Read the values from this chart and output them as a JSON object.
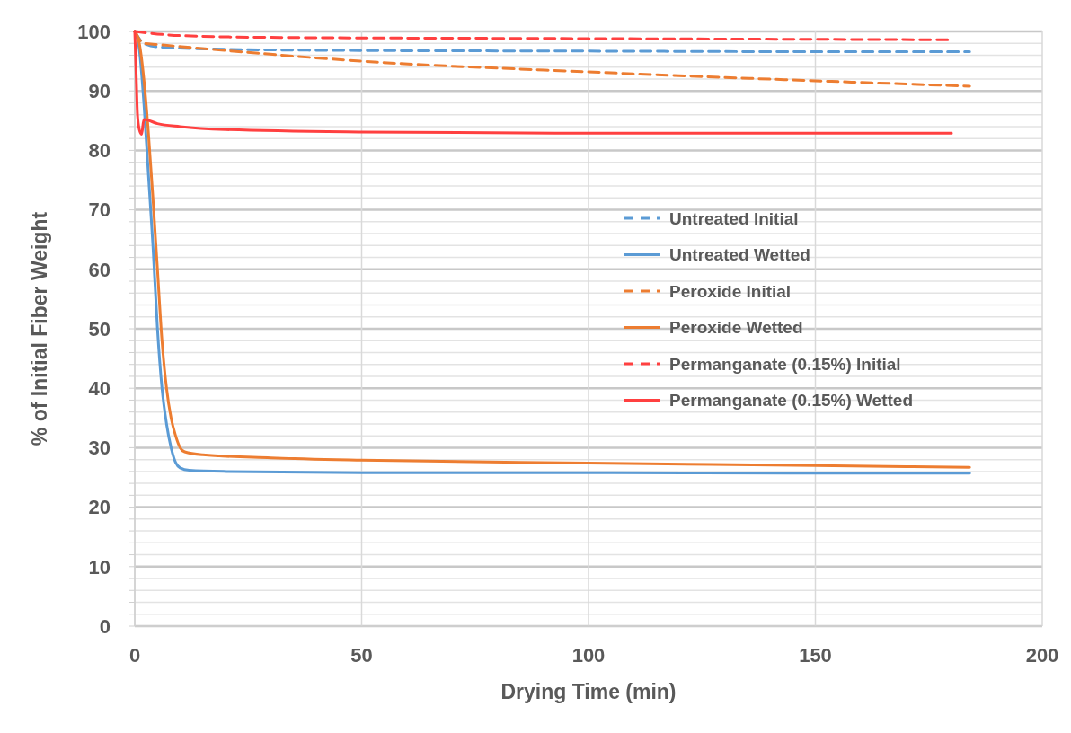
{
  "chart_data": {
    "type": "line",
    "xlabel": "Drying Time (min)",
    "ylabel": "% of Initial Fiber Weight",
    "xlim": [
      0,
      200
    ],
    "xticks": [
      0,
      50,
      100,
      150,
      200
    ],
    "ylim": [
      0,
      100
    ],
    "yticks": [
      0,
      {
        "value": 2,
        "label": null
      },
      {
        "value": 4,
        "label": null
      },
      {
        "value": 6,
        "label": null
      },
      {
        "value": 8,
        "label": null
      },
      10,
      {
        "value": 12,
        "label": null
      },
      {
        "value": 14,
        "label": null
      },
      {
        "value": 16,
        "label": null
      },
      {
        "value": 18,
        "label": null
      },
      20,
      {
        "value": 22,
        "label": null
      },
      {
        "value": 24,
        "label": null
      },
      {
        "value": 26,
        "label": null
      },
      {
        "value": 28,
        "label": null
      },
      30,
      {
        "value": 32,
        "label": null
      },
      {
        "value": 34,
        "label": null
      },
      {
        "value": 36,
        "label": null
      },
      {
        "value": 38,
        "label": null
      },
      40,
      {
        "value": 42,
        "label": null
      },
      {
        "value": 44,
        "label": null
      },
      {
        "value": 46,
        "label": null
      },
      {
        "value": 48,
        "label": null
      },
      50,
      {
        "value": 52,
        "label": null
      },
      {
        "value": 54,
        "label": null
      },
      {
        "value": 56,
        "label": null
      },
      {
        "value": 58,
        "label": null
      },
      60,
      {
        "value": 62,
        "label": null
      },
      {
        "value": 64,
        "label": null
      },
      {
        "value": 66,
        "label": null
      },
      {
        "value": 68,
        "label": null
      },
      70,
      {
        "value": 72,
        "label": null
      },
      {
        "value": 74,
        "label": null
      },
      {
        "value": 76,
        "label": null
      },
      {
        "value": 78,
        "label": null
      },
      80,
      {
        "value": 82,
        "label": null
      },
      {
        "value": 84,
        "label": null
      },
      {
        "value": 86,
        "label": null
      },
      {
        "value": 88,
        "label": null
      },
      90,
      {
        "value": 92,
        "label": null
      },
      {
        "value": 94,
        "label": null
      },
      {
        "value": 96,
        "label": null
      },
      {
        "value": 98,
        "label": null
      },
      100
    ],
    "grid": true,
    "legend": "right",
    "series": [
      {
        "name": "Untreated Initial",
        "color": "#5b9bd5",
        "line_style": "dashed",
        "x": [
          0,
          2,
          5,
          20,
          50,
          100,
          150,
          184
        ],
        "values": [
          100,
          98,
          97.4,
          97,
          96.8,
          96.7,
          96.6,
          96.6
        ]
      },
      {
        "name": "Untreated Wetted",
        "color": "#5b9bd5",
        "line_style": "solid",
        "x": [
          0,
          1,
          2,
          3,
          4,
          5,
          6,
          7,
          8,
          9,
          10,
          12,
          20,
          50,
          100,
          150,
          184
        ],
        "values": [
          100,
          97,
          88,
          76,
          64,
          50,
          40,
          34,
          30,
          27.5,
          26.6,
          26.2,
          26,
          25.8,
          25.8,
          25.7,
          25.7
        ]
      },
      {
        "name": "Peroxide Initial",
        "color": "#ed7d31",
        "line_style": "dashed",
        "x": [
          0,
          2,
          5,
          20,
          50,
          100,
          150,
          184
        ],
        "values": [
          100,
          98,
          97.8,
          96.8,
          95,
          93.2,
          91.7,
          90.8
        ]
      },
      {
        "name": "Peroxide Wetted",
        "color": "#ed7d31",
        "line_style": "solid",
        "x": [
          0,
          1,
          2,
          3,
          4,
          5,
          6,
          7,
          8,
          9,
          10,
          11,
          15,
          30,
          50,
          100,
          150,
          184
        ],
        "values": [
          100,
          98,
          92,
          83,
          72,
          60,
          48,
          40,
          35,
          32,
          30,
          29.3,
          28.8,
          28.3,
          27.9,
          27.4,
          27,
          26.7
        ]
      },
      {
        "name": "Permanganate (0.15%) Initial",
        "color": "#ff4040",
        "line_style": "dashed",
        "x": [
          0,
          10,
          30,
          100,
          180
        ],
        "values": [
          100,
          99.3,
          99,
          98.8,
          98.6
        ]
      },
      {
        "name": "Permanganate (0.15%) Wetted",
        "color": "#ff4040",
        "line_style": "solid",
        "x": [
          0,
          0.3,
          0.6,
          1,
          1.5,
          2,
          5,
          10,
          20,
          50,
          100,
          180
        ],
        "values": [
          100,
          93,
          86,
          83.5,
          82.7,
          85.2,
          84.5,
          84,
          83.5,
          83.1,
          82.9,
          82.9
        ]
      }
    ]
  }
}
